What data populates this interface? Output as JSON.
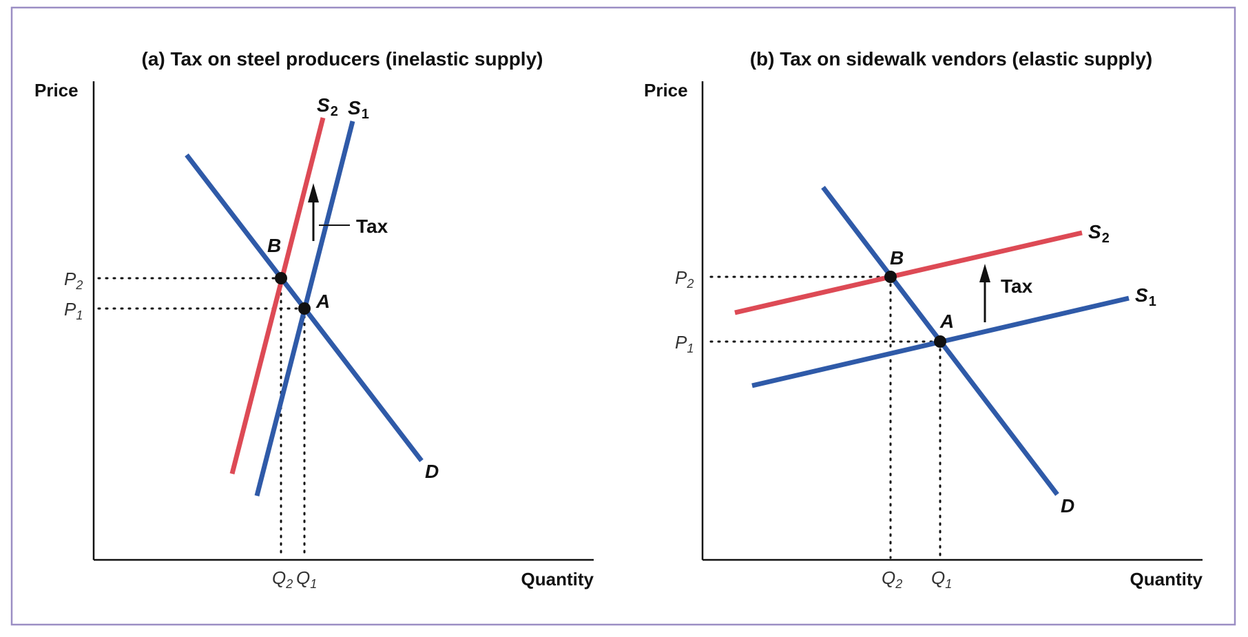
{
  "colors": {
    "frame": "#9b8ec4",
    "demand": "#2f5aa8",
    "supply_original": "#2f5aa8",
    "supply_taxed": "#dd4a55",
    "axis": "#111111",
    "point": "#111111",
    "guide": "#111111"
  },
  "panels": [
    {
      "title": "(a) Tax on steel producers (inelastic supply)",
      "y_axis_label": "Price",
      "x_axis_label": "Quantity",
      "curves": {
        "demand": {
          "label": "D"
        },
        "supply_1": {
          "label": "S",
          "sub": "1"
        },
        "supply_2": {
          "label": "S",
          "sub": "2"
        }
      },
      "points": {
        "before_tax": "A",
        "after_tax": "B"
      },
      "tax_label": "Tax",
      "price_ticks": [
        {
          "label": "P",
          "sub": "2"
        },
        {
          "label": "P",
          "sub": "1"
        }
      ],
      "quantity_ticks": [
        {
          "label": "Q",
          "sub": "2"
        },
        {
          "label": "Q",
          "sub": "1"
        }
      ]
    },
    {
      "title": "(b) Tax on sidewalk vendors (elastic supply)",
      "y_axis_label": "Price",
      "x_axis_label": "Quantity",
      "curves": {
        "demand": {
          "label": "D"
        },
        "supply_1": {
          "label": "S",
          "sub": "1"
        },
        "supply_2": {
          "label": "S",
          "sub": "2"
        }
      },
      "points": {
        "before_tax": "A",
        "after_tax": "B"
      },
      "tax_label": "Tax",
      "price_ticks": [
        {
          "label": "P",
          "sub": "2"
        },
        {
          "label": "P",
          "sub": "1"
        }
      ],
      "quantity_ticks": [
        {
          "label": "Q",
          "sub": "2"
        },
        {
          "label": "Q",
          "sub": "1"
        }
      ]
    }
  ]
}
